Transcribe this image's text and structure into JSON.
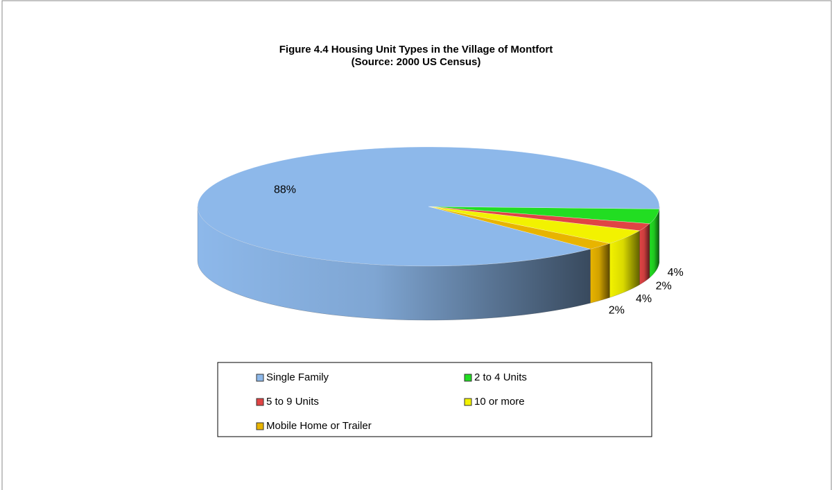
{
  "chart_data": {
    "type": "pie3d",
    "title": "Figure 4.4 Housing Unit Types in the Village of Montfort",
    "subtitle": "(Source: 2000 US Census)",
    "categories": [
      "Single Family",
      "2 to 4 Units",
      "5 to 9 Units",
      "10 or more",
      "Mobile Home or Trailer"
    ],
    "values": [
      88,
      4,
      2,
      4,
      2
    ],
    "value_labels": [
      "88%",
      "4%",
      "2%",
      "4%",
      "2%"
    ],
    "colors": [
      "#8db8ea",
      "#22dd22",
      "#e04444",
      "#f2f200",
      "#e8b400"
    ],
    "legend": "bottom"
  }
}
